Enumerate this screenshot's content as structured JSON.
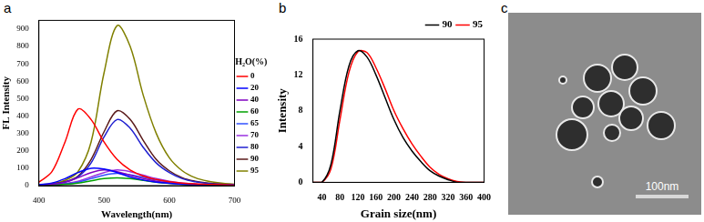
{
  "chart_data": [
    {
      "panel": "a",
      "type": "line",
      "x_label": "Wavelength(nm)",
      "y_label": "FL Intensity",
      "legend_title": "H₂O(%)",
      "x": [
        400,
        420,
        440,
        460,
        480,
        500,
        520,
        540,
        560,
        580,
        600,
        620,
        640,
        660,
        680,
        700
      ],
      "series": [
        {
          "name": "0",
          "color": "#ff0000",
          "values": [
            20,
            80,
            250,
            440,
            380,
            250,
            150,
            90,
            55,
            35,
            22,
            15,
            10,
            7,
            5,
            3
          ]
        },
        {
          "name": "20",
          "color": "#0000ff",
          "values": [
            5,
            15,
            40,
            75,
            100,
            95,
            75,
            50,
            32,
            20,
            13,
            8,
            5,
            4,
            3,
            2
          ]
        },
        {
          "name": "40",
          "color": "#8000c0",
          "values": [
            3,
            8,
            20,
            45,
            75,
            90,
            80,
            60,
            40,
            25,
            15,
            10,
            6,
            4,
            3,
            2
          ]
        },
        {
          "name": "60",
          "color": "#00a000",
          "values": [
            2,
            4,
            8,
            15,
            28,
            40,
            45,
            40,
            30,
            20,
            13,
            8,
            5,
            3,
            2,
            1
          ]
        },
        {
          "name": "65",
          "color": "#3050ff",
          "values": [
            2,
            5,
            10,
            20,
            40,
            60,
            70,
            62,
            48,
            32,
            20,
            12,
            7,
            5,
            3,
            2
          ]
        },
        {
          "name": "70",
          "color": "#9a30e0",
          "values": [
            2,
            5,
            12,
            25,
            50,
            75,
            90,
            80,
            60,
            40,
            25,
            15,
            9,
            6,
            4,
            2
          ]
        },
        {
          "name": "80",
          "color": "#2020d0",
          "values": [
            3,
            8,
            20,
            50,
            130,
            280,
            380,
            330,
            220,
            130,
            75,
            40,
            22,
            12,
            7,
            4
          ]
        },
        {
          "name": "90",
          "color": "#5a1a1a",
          "values": [
            3,
            8,
            22,
            55,
            150,
            310,
            430,
            380,
            260,
            150,
            85,
            45,
            25,
            14,
            8,
            4
          ]
        },
        {
          "name": "95",
          "color": "#808000",
          "values": [
            5,
            12,
            30,
            80,
            250,
            650,
            920,
            800,
            520,
            300,
            160,
            85,
            45,
            25,
            14,
            8
          ]
        }
      ],
      "xlim": [
        400,
        700
      ],
      "xticks": [
        400,
        500,
        600,
        700
      ],
      "ylim": [
        0,
        950
      ],
      "yticks": [
        0,
        100,
        200,
        300,
        400,
        500,
        600,
        700,
        800,
        900
      ],
      "grid": false,
      "legend": "right"
    },
    {
      "panel": "b",
      "type": "line",
      "x_label": "Grain size(nm)",
      "y_label": "Intensity",
      "x": [
        20,
        40,
        60,
        80,
        100,
        120,
        140,
        160,
        180,
        200,
        220,
        240,
        260,
        280,
        300,
        320,
        340,
        360,
        380,
        400
      ],
      "series": [
        {
          "name": "90",
          "color": "#000000",
          "values": [
            0,
            0,
            2,
            8,
            13,
            14.7,
            14,
            12,
            9.5,
            7,
            5,
            3.5,
            2.3,
            1.3,
            0.7,
            0.3,
            0,
            0,
            0,
            0
          ]
        },
        {
          "name": "95",
          "color": "#ff0000",
          "values": [
            0,
            0,
            1.5,
            7,
            12.3,
            14.6,
            14.5,
            12.8,
            10.5,
            8,
            6,
            4.3,
            2.9,
            1.7,
            0.9,
            0.4,
            0.1,
            0,
            0,
            0
          ]
        }
      ],
      "xlim": [
        20,
        400
      ],
      "xticks": [
        40,
        80,
        120,
        160,
        200,
        240,
        280,
        320,
        360,
        400
      ],
      "ylim": [
        0,
        16
      ],
      "yticks": [
        0,
        4,
        8,
        12,
        16
      ],
      "grid": false,
      "legend": "top right"
    }
  ],
  "image": {
    "panel": "c",
    "scale_bar": "100nm"
  }
}
